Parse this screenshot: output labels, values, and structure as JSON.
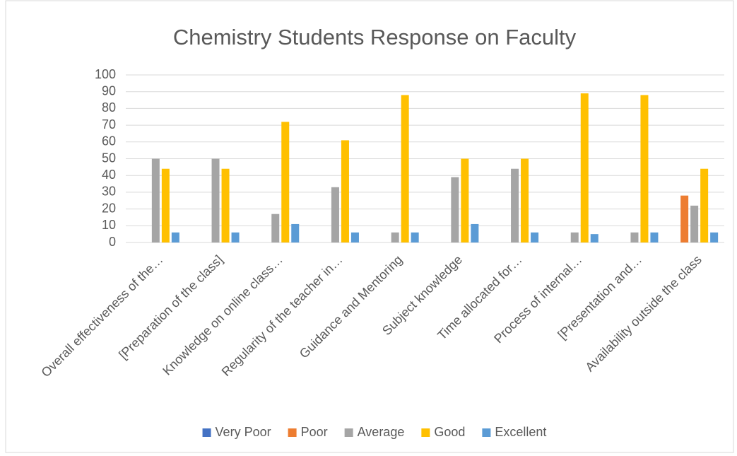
{
  "chart_data": {
    "type": "bar",
    "title": "Chemistry Students Response on Faculty",
    "categories": [
      "Overall effectiveness of the…",
      "[Preparation of the class]",
      "Knowledge on online class…",
      "Regularity of the teacher in…",
      "Guidance and Mentoring",
      "Subject knowledge",
      "Time allocated for…",
      "Process of internal…",
      "[Presentation and…",
      "Availability outside the class"
    ],
    "series": [
      {
        "name": "Very Poor",
        "color": "#4472c4",
        "values": [
          0,
          0,
          0,
          0,
          0,
          0,
          0,
          0,
          0,
          0
        ]
      },
      {
        "name": "Poor",
        "color": "#ed7d31",
        "values": [
          0,
          0,
          0,
          0,
          0,
          0,
          0,
          0,
          0,
          28
        ]
      },
      {
        "name": "Average",
        "color": "#a5a5a5",
        "values": [
          50,
          50,
          17,
          33,
          6,
          39,
          44,
          6,
          6,
          22
        ]
      },
      {
        "name": "Good",
        "color": "#ffc000",
        "values": [
          44,
          44,
          72,
          61,
          88,
          50,
          50,
          89,
          88,
          44
        ]
      },
      {
        "name": "Excellent",
        "color": "#5b9bd5",
        "values": [
          6,
          6,
          11,
          6,
          6,
          11,
          6,
          5,
          6,
          6
        ]
      }
    ],
    "ylim": [
      0,
      100
    ],
    "yticks": [
      0,
      10,
      20,
      30,
      40,
      50,
      60,
      70,
      80,
      90,
      100
    ],
    "grid": true,
    "legend": "bottom"
  }
}
